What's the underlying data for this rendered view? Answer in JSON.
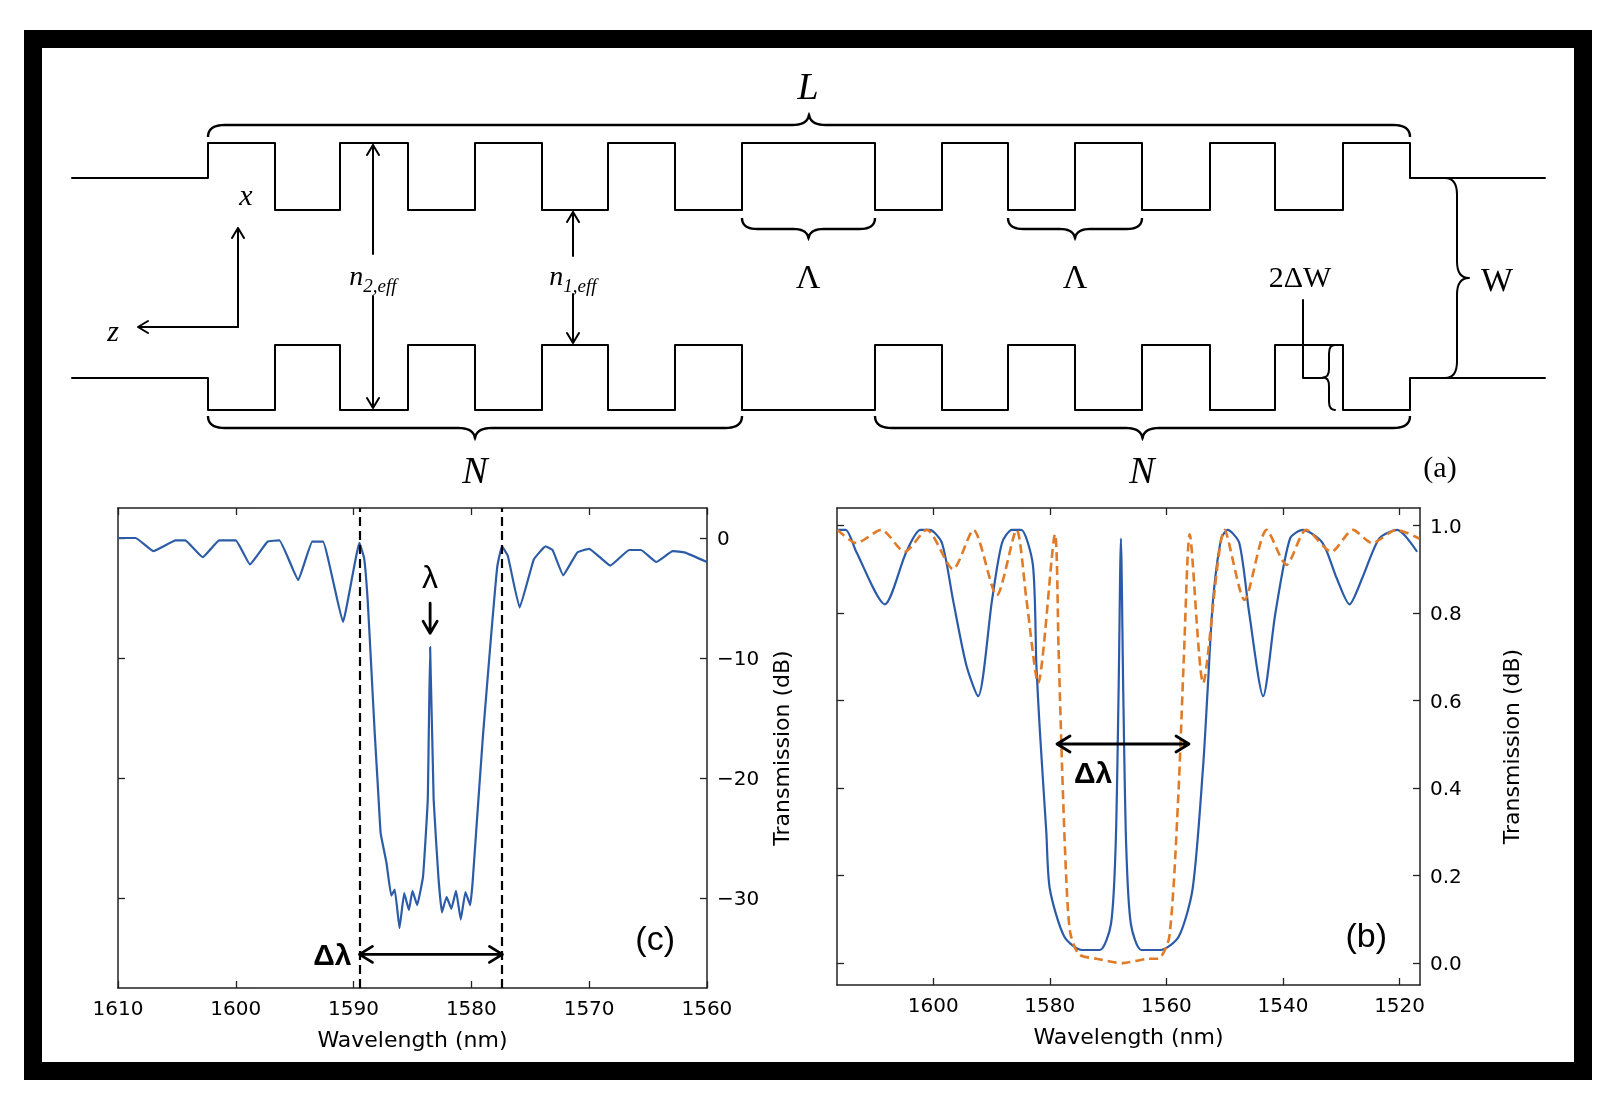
{
  "chart_data": [
    {
      "type": "other",
      "annotations": [
        "L",
        "x",
        "z",
        "n$_{2,eff}$",
        "n$_{1,eff}$",
        "Λ",
        "Λ",
        "2ΔW",
        "W",
        "N",
        "N",
        "(a)"
      ]
    },
    {
      "type": "line",
      "xlabel": "Wavelength (nm)",
      "ylabel": "Transmission (dB)",
      "xlim": [
        1610,
        1560
      ],
      "ylim": [
        -37.5,
        2.5
      ],
      "xticks": [
        1610,
        1600,
        1590,
        1580,
        1570,
        1560
      ],
      "yticks": [
        0,
        {
          "value": -10,
          "label": "−10"
        },
        {
          "value": -20,
          "label": "−20"
        },
        {
          "value": -30,
          "label": "−30"
        }
      ],
      "series": [
        {
          "color": "#2d5ca6",
          "x": [
            1610,
            1608.5,
            1607.0,
            1605.1,
            1604.3,
            1602.8,
            1601.4,
            1600.0,
            1598.8,
            1597.3,
            1596.3,
            1594.7,
            1593.5,
            1592.6,
            1590.9,
            1589.5,
            1589.1,
            1588.8,
            1588.5,
            1588.2,
            1587.9,
            1587.7,
            1587.2,
            1586.8,
            1586.5,
            1586.1,
            1585.7,
            1585.3,
            1585.0,
            1584.6,
            1584.1,
            1583.7,
            1583.5,
            1583.2,
            1582.8,
            1582.5,
            1582.1,
            1581.7,
            1581.3,
            1580.9,
            1580.5,
            1580.1,
            1579.9,
            1579.6,
            1579.0,
            1578.3,
            1577.8,
            1577.4,
            1576.9,
            1575.9,
            1574.7,
            1573.7,
            1573.1,
            1572.2,
            1571.0,
            1570.0,
            1568.2,
            1566.6,
            1565.6,
            1564.3,
            1562.9,
            1561.9,
            1560.0
          ],
          "values": [
            0,
            0,
            -1.1,
            -0.2,
            -0.2,
            -1.6,
            -0.2,
            -0.2,
            -2.2,
            -0.3,
            -0.2,
            -3.5,
            -0.3,
            -0.3,
            -7.0,
            -0.4,
            -1.7,
            -5.2,
            -10.7,
            -16.3,
            -21.3,
            -24.6,
            -27.1,
            -29.8,
            -29.3,
            -32.5,
            -29.6,
            -31.0,
            -29.4,
            -30.6,
            -28.2,
            -21.8,
            -9.1,
            -21.8,
            -28.2,
            -31.2,
            -29.9,
            -30.9,
            -29.4,
            -31.8,
            -29.5,
            -30.6,
            -28.8,
            -24.6,
            -16.3,
            -7.9,
            -2.4,
            -0.7,
            -1.5,
            -5.8,
            -1.8,
            -0.7,
            -1.0,
            -3.1,
            -1.2,
            -0.9,
            -2.3,
            -1.0,
            -1.0,
            -2.0,
            -1.1,
            -1.2,
            -2.0
          ]
        }
      ],
      "ref_lines": [
        {
          "axis": "x",
          "value": 1589.5,
          "color": "#000000",
          "line_style": "dashed"
        },
        {
          "axis": "x",
          "value": 1577.4,
          "color": "#000000",
          "line_style": "dashed"
        }
      ],
      "annotations": [
        {
          "text": "λ",
          "x": 1583.5,
          "y": -9.1
        },
        {
          "text": "Δλ",
          "x": 1589.5,
          "y": -34.7
        },
        "(c)"
      ]
    },
    {
      "type": "line",
      "xlabel": "Wavelength (nm)",
      "ylabel": "Transmission (dB)",
      "xlim": [
        1616.5,
        1516.5
      ],
      "ylim": [
        -0.05,
        1.04
      ],
      "xticks": [
        1600,
        1580,
        1560,
        1540,
        1520
      ],
      "yticks": [
        {
          "value": 0,
          "label": "0.0"
        },
        {
          "value": 0.2,
          "label": "0.2"
        },
        {
          "value": 0.4,
          "label": "0.4"
        },
        {
          "value": 0.6,
          "label": "0.6"
        },
        {
          "value": 0.8,
          "label": "0.8"
        },
        {
          "value": 1,
          "label": "1.0"
        }
      ],
      "series": [
        {
          "color": "#2b5ba8",
          "x": [
            1616.4,
            1615.0,
            1613.2,
            1608.3,
            1604.6,
            1602.2,
            1600.6,
            1598.5,
            1596.6,
            1594.3,
            1592.3,
            1589.9,
            1588.2,
            1586.5,
            1584.9,
            1582.9,
            1582.3,
            1581.7,
            1580.6,
            1580.0,
            1577.5,
            1574.5,
            1571.4,
            1569.5,
            1568.7,
            1568.2,
            1567.8,
            1567.4,
            1566.9,
            1566.1,
            1564.3,
            1561.0,
            1557.9,
            1555.5,
            1553.7,
            1552.9,
            1552.0,
            1550.6,
            1549.5,
            1547.5,
            1545.8,
            1543.4,
            1541.3,
            1538.8,
            1536.6,
            1533.2,
            1530.8,
            1528.6,
            1526.4,
            1523.5,
            1520.4,
            1517.0
          ],
          "values": [
            0.99,
            0.99,
            0.94,
            0.82,
            0.94,
            0.99,
            0.99,
            0.96,
            0.83,
            0.68,
            0.61,
            0.83,
            0.96,
            0.99,
            0.99,
            0.91,
            0.68,
            0.53,
            0.3,
            0.17,
            0.06,
            0.03,
            0.03,
            0.09,
            0.27,
            0.62,
            0.97,
            0.62,
            0.27,
            0.09,
            0.03,
            0.03,
            0.06,
            0.17,
            0.45,
            0.63,
            0.83,
            0.97,
            0.99,
            0.96,
            0.8,
            0.61,
            0.8,
            0.97,
            0.99,
            0.96,
            0.88,
            0.82,
            0.88,
            0.97,
            0.99,
            0.94
          ]
        },
        {
          "color": "#e07b28",
          "line_style": "dashed",
          "x": [
            1616.4,
            1613.2,
            1608.9,
            1604.9,
            1601.1,
            1596.6,
            1593.1,
            1589.1,
            1585.7,
            1584.0,
            1582.0,
            1579.1,
            1578.5,
            1577.9,
            1577.2,
            1576.5,
            1575.0,
            1572.0,
            1567.5,
            1563.0,
            1561.4,
            1559.5,
            1558.0,
            1557.0,
            1556.0,
            1553.7,
            1550.0,
            1546.6,
            1542.8,
            1539.4,
            1536.0,
            1531.7,
            1528.0,
            1524.7,
            1520.5,
            1516.6
          ],
          "values": [
            0.99,
            0.96,
            0.99,
            0.94,
            0.99,
            0.9,
            0.99,
            0.84,
            0.99,
            0.83,
            0.64,
            0.98,
            0.72,
            0.45,
            0.2,
            0.07,
            0.02,
            0.01,
            0.0,
            0.01,
            0.01,
            0.06,
            0.37,
            0.7,
            0.98,
            0.64,
            0.99,
            0.83,
            0.99,
            0.91,
            0.99,
            0.94,
            0.99,
            0.96,
            0.99,
            0.97
          ]
        }
      ],
      "annotations": [
        "Δλ",
        "(b)"
      ]
    }
  ]
}
